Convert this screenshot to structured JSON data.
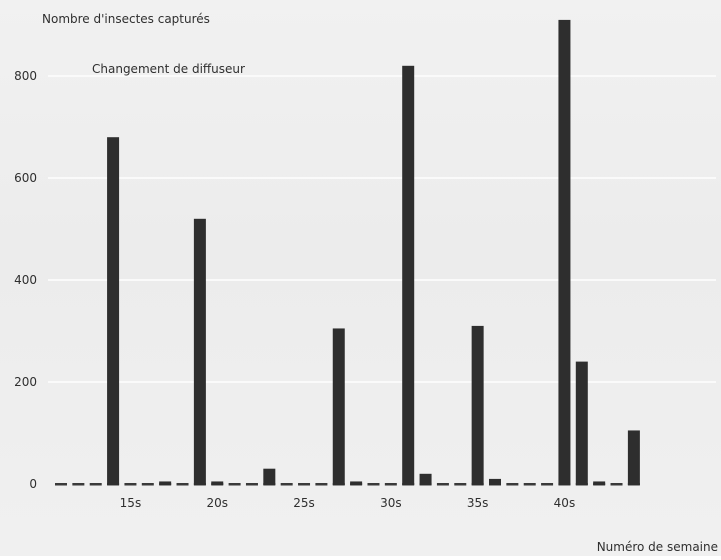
{
  "chart_data": {
    "type": "bar",
    "ylabel": "Nombre d'insectes capturés",
    "xlabel": "Numéro de semaine",
    "annotation": "Changement de diffuseur",
    "ylim": [
      0,
      950
    ],
    "yticks": [
      0,
      200,
      400,
      600,
      800
    ],
    "grid": true,
    "legend": "none",
    "x_tick_labels": [
      "15s",
      "20s",
      "25s",
      "30s",
      "35s",
      "40s"
    ],
    "x_ticks": [
      15,
      20,
      25,
      30,
      35,
      40
    ],
    "x_range": [
      11,
      44
    ],
    "bar_color": "#2e2e2e",
    "weeks": [
      11,
      12,
      13,
      14,
      15,
      16,
      17,
      18,
      19,
      20,
      21,
      22,
      23,
      24,
      25,
      26,
      27,
      28,
      29,
      30,
      31,
      32,
      33,
      34,
      35,
      36,
      37,
      38,
      39,
      40,
      41,
      42,
      43,
      44
    ],
    "values": [
      0,
      0,
      0,
      680,
      0,
      0,
      5,
      0,
      520,
      5,
      0,
      0,
      30,
      0,
      0,
      0,
      305,
      5,
      0,
      0,
      820,
      20,
      0,
      0,
      310,
      10,
      0,
      0,
      0,
      910,
      240,
      5,
      0,
      105
    ]
  }
}
